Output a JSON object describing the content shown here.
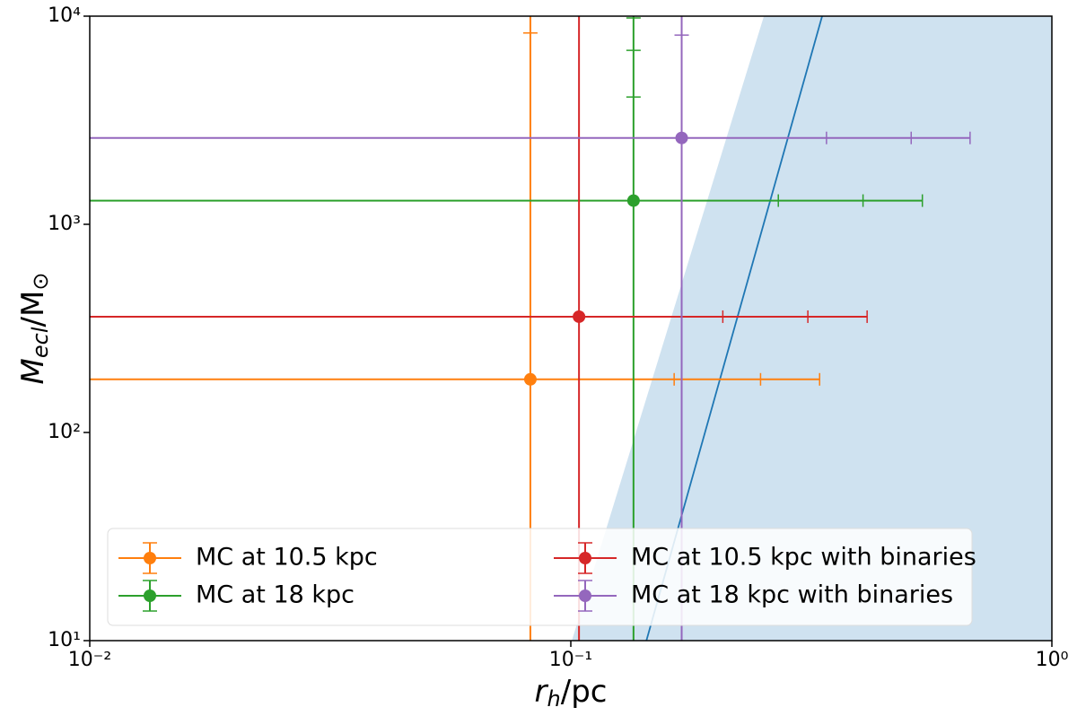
{
  "chart_data": {
    "type": "errorbar",
    "xlabel": [
      "r",
      "h",
      "/pc"
    ],
    "ylabel": [
      "M",
      "ecl",
      "/M",
      "⊙"
    ],
    "xscale": "log",
    "yscale": "log",
    "xlim": [
      0.01,
      1
    ],
    "ylim": [
      10,
      10000
    ],
    "xticks": [
      {
        "value": 0.01,
        "label": "10⁻²"
      },
      {
        "value": 0.1,
        "label": "10⁻¹"
      },
      {
        "value": 1,
        "label": "10⁰"
      }
    ],
    "yticks": [
      {
        "value": 10,
        "label": "10¹"
      },
      {
        "value": 100,
        "label": "10²"
      },
      {
        "value": 1000,
        "label": "10³"
      },
      {
        "value": 10000,
        "label": "10⁴"
      }
    ],
    "legend_position": "lower left",
    "legend_columns": 2,
    "shaded_region": {
      "color": "#cfe2f0",
      "x": [
        0.1005,
        0.252
      ],
      "y": [
        10,
        10000
      ]
    },
    "line": {
      "color": "#1f77b4",
      "x": [
        0.1436,
        0.333
      ],
      "y": [
        10,
        10000
      ]
    },
    "series": [
      {
        "name": "MC at 10.5 kpc",
        "color": "#ff7f0e",
        "x": 0.0824,
        "y": 180,
        "x_caps": [
          0.164,
          0.248,
          0.329
        ],
        "y_caps": [
          8300
        ]
      },
      {
        "name": "MC at 18 kpc",
        "color": "#2ca02c",
        "x": 0.135,
        "y": 1300,
        "x_caps": [
          0.27,
          0.405,
          0.538
        ],
        "y_caps": [
          4090,
          6850,
          9800
        ]
      },
      {
        "name": "MC at 10.5 kpc with binaries",
        "color": "#d62728",
        "x": 0.104,
        "y": 360,
        "x_caps": [
          0.207,
          0.311,
          0.413
        ],
        "y_caps": []
      },
      {
        "name": "MC at 18 kpc with binaries",
        "color": "#9467bd",
        "x": 0.17,
        "y": 2600,
        "x_caps": [
          0.34,
          0.51,
          0.676
        ],
        "y_caps": [
          8110
        ]
      }
    ]
  }
}
